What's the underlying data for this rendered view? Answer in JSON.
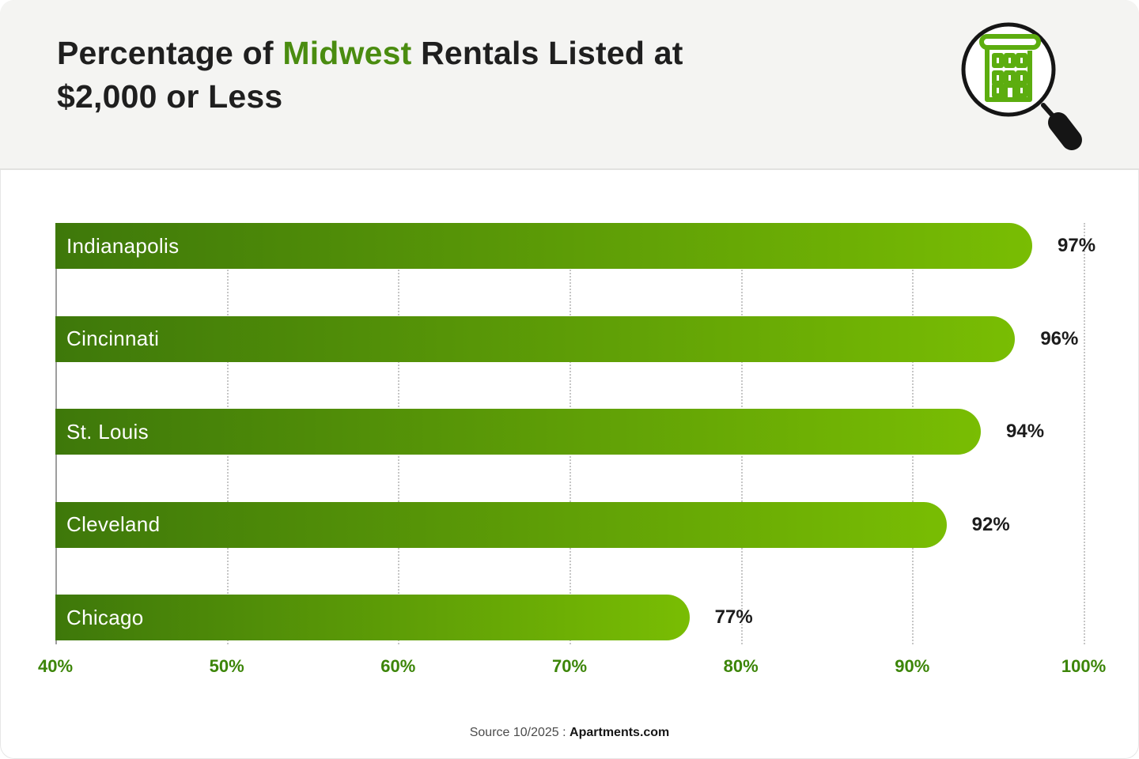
{
  "header": {
    "title_prefix": "Percentage of ",
    "title_highlight": "Midwest",
    "title_suffix": " Rentals Listed at",
    "title_line2": "$2,000 or Less",
    "icon": "magnifier-building-icon"
  },
  "colors": {
    "header_bg": "#F4F4F2",
    "bar_gradient_start": "#3E780A",
    "bar_gradient_end": "#79BD03",
    "title_highlight_green": "#4A8C10",
    "tick_green": "#3C8508",
    "text_dark": "#1F1F1F",
    "bar_label_white": "#FFFFFF",
    "gridline_gray": "#C6C6C6",
    "axis_line_gray": "#9E9E9E",
    "icon_building_green": "#5CAD0F",
    "icon_black": "#151515"
  },
  "chart_data": {
    "type": "bar",
    "orientation": "horizontal",
    "title": "Percentage of Midwest Rentals Listed at $2,000 or Less",
    "categories": [
      "Indianapolis",
      "Cincinnati",
      "St. Louis",
      "Cleveland",
      "Chicago"
    ],
    "values": [
      97,
      96,
      94,
      92,
      77
    ],
    "value_labels": [
      "97%",
      "96%",
      "94%",
      "92%",
      "77%"
    ],
    "x_ticks": [
      "40%",
      "50%",
      "60%",
      "70%",
      "80%",
      "90%",
      "100%"
    ],
    "x_tick_values": [
      40,
      50,
      60,
      70,
      80,
      90,
      100
    ],
    "xlim": [
      40,
      100
    ],
    "grid": "vertical-dotted",
    "legend": "none"
  },
  "footer": {
    "source_prefix": "Source 10/2025 : ",
    "source_brand": "Apartments.com"
  }
}
